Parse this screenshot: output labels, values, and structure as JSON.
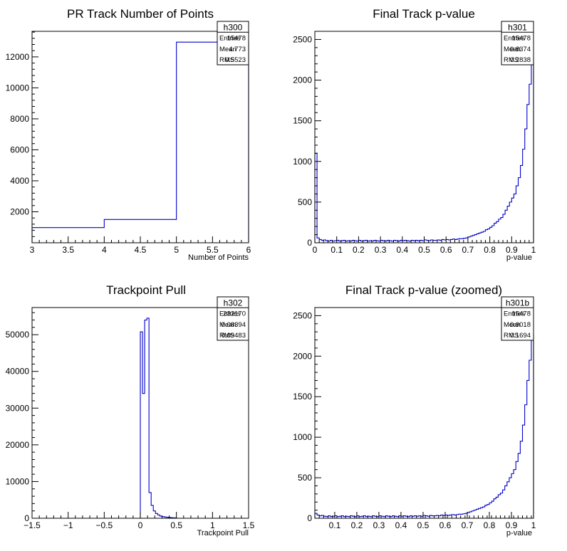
{
  "chart_data": [
    {
      "type": "histogram",
      "title": "PR Track Number of Points",
      "xlabel": "Number of Points",
      "ylabel": "",
      "xlim": [
        3,
        6
      ],
      "ylim": [
        0,
        13650
      ],
      "x_ticks": [
        3,
        3.5,
        4,
        4.5,
        5,
        5.5,
        6
      ],
      "x_tick_labels": [
        "3",
        "3.5",
        "4",
        "4.5",
        "5",
        "5.5",
        "6"
      ],
      "y_ticks": [
        2000,
        4000,
        6000,
        8000,
        10000,
        12000
      ],
      "y_tick_labels": [
        "2000",
        "4000",
        "6000",
        "8000",
        "10000",
        "12000"
      ],
      "bin_edges": [
        3,
        4,
        5,
        6
      ],
      "counts": [
        980,
        1500,
        12950
      ],
      "line_color": "#0000cc",
      "stats": {
        "name": "h300",
        "rows": [
          [
            "Entries",
            "15478"
          ],
          [
            "Mean",
            "4.773"
          ],
          [
            "RMS",
            "0.5523"
          ]
        ]
      }
    },
    {
      "type": "histogram",
      "title": "Final Track p-value",
      "xlabel": "p-value",
      "ylabel": "",
      "xlim": [
        0,
        1
      ],
      "ylim": [
        0,
        2600
      ],
      "x_ticks": [
        0,
        0.1,
        0.2,
        0.3,
        0.4,
        0.5,
        0.6,
        0.7,
        0.8,
        0.9,
        1
      ],
      "x_tick_labels": [
        "0",
        "0.1",
        "0.2",
        "0.3",
        "0.4",
        "0.5",
        "0.6",
        "0.7",
        "0.8",
        "0.9",
        "1"
      ],
      "y_ticks": [
        0,
        500,
        1000,
        1500,
        2000,
        2500
      ],
      "y_tick_labels": [
        "0",
        "500",
        "1000",
        "1500",
        "2000",
        "2500"
      ],
      "bin_edges": [
        0,
        0.01,
        0.02,
        0.03,
        0.04,
        0.05,
        0.06,
        0.07,
        0.08,
        0.09,
        0.1,
        0.11,
        0.12,
        0.13,
        0.14,
        0.15,
        0.16,
        0.17,
        0.18,
        0.19,
        0.2,
        0.21,
        0.22,
        0.23,
        0.24,
        0.25,
        0.26,
        0.27,
        0.28,
        0.29,
        0.3,
        0.31,
        0.32,
        0.33,
        0.34,
        0.35,
        0.36,
        0.37,
        0.38,
        0.39,
        0.4,
        0.41,
        0.42,
        0.43,
        0.44,
        0.45,
        0.46,
        0.47,
        0.48,
        0.49,
        0.5,
        0.51,
        0.52,
        0.53,
        0.54,
        0.55,
        0.56,
        0.57,
        0.58,
        0.59,
        0.6,
        0.61,
        0.62,
        0.63,
        0.64,
        0.65,
        0.66,
        0.67,
        0.68,
        0.69,
        0.7,
        0.71,
        0.72,
        0.73,
        0.74,
        0.75,
        0.76,
        0.77,
        0.78,
        0.79,
        0.8,
        0.81,
        0.82,
        0.83,
        0.84,
        0.85,
        0.86,
        0.87,
        0.88,
        0.89,
        0.9,
        0.91,
        0.92,
        0.93,
        0.94,
        0.95,
        0.96,
        0.97,
        0.98,
        0.99,
        1
      ],
      "counts": [
        1100,
        60,
        40,
        30,
        35,
        25,
        20,
        30,
        20,
        25,
        30,
        20,
        25,
        30,
        20,
        25,
        20,
        30,
        25,
        20,
        30,
        20,
        25,
        30,
        20,
        25,
        20,
        30,
        25,
        20,
        30,
        25,
        20,
        30,
        25,
        20,
        30,
        25,
        20,
        30,
        25,
        30,
        25,
        20,
        30,
        25,
        30,
        25,
        30,
        25,
        35,
        30,
        25,
        35,
        30,
        30,
        35,
        30,
        40,
        35,
        40,
        35,
        40,
        45,
        40,
        45,
        50,
        50,
        55,
        60,
        70,
        80,
        90,
        100,
        110,
        120,
        130,
        140,
        160,
        170,
        190,
        210,
        240,
        260,
        290,
        310,
        350,
        400,
        450,
        500,
        550,
        600,
        700,
        800,
        950,
        1150,
        1400,
        1700,
        1950,
        2260
      ],
      "line_color": "#0000cc",
      "stats": {
        "name": "h301",
        "rows": [
          [
            "Entries",
            "15478"
          ],
          [
            "Mean",
            "0.8374"
          ],
          [
            "RMS",
            "0.2838"
          ]
        ]
      }
    },
    {
      "type": "histogram",
      "title": "Trackpoint Pull",
      "xlabel": "Trackpoint Pull",
      "ylabel": "",
      "xlim": [
        -1.5,
        1.5
      ],
      "ylim": [
        0,
        57400
      ],
      "x_ticks": [
        -1.5,
        -1,
        -0.5,
        0,
        0.5,
        1,
        1.5
      ],
      "x_tick_labels": [
        "−1.5",
        "−1",
        "−0.5",
        "0",
        "0.5",
        "1",
        "1.5"
      ],
      "y_ticks": [
        0,
        10000,
        20000,
        30000,
        40000,
        50000
      ],
      "y_tick_labels": [
        "0",
        "10000",
        "20000",
        "30000",
        "40000",
        "50000"
      ],
      "bin_edges": [
        0,
        0.03,
        0.06,
        0.09,
        0.12,
        0.15,
        0.18,
        0.21,
        0.24,
        0.27,
        0.3,
        0.33,
        0.36,
        0.39,
        0.42,
        0.45,
        0.5
      ],
      "counts": [
        50800,
        34000,
        54000,
        54500,
        7000,
        3500,
        2000,
        1300,
        900,
        600,
        450,
        350,
        250,
        200,
        150,
        100
      ],
      "line_color": "#0000cc",
      "stats": {
        "name": "h302",
        "rows": [
          [
            "Entries",
            "232170"
          ],
          [
            "Mean",
            "0.08394"
          ],
          [
            "RMS",
            "0.09483"
          ]
        ]
      }
    },
    {
      "type": "histogram",
      "title": "Final Track p-value (zoomed)",
      "xlabel": "p-value",
      "ylabel": "",
      "xlim": [
        0.01,
        1
      ],
      "ylim": [
        0,
        2600
      ],
      "x_ticks": [
        0.1,
        0.2,
        0.3,
        0.4,
        0.5,
        0.6,
        0.7,
        0.8,
        0.9,
        1
      ],
      "x_tick_labels": [
        "0.1",
        "0.2",
        "0.3",
        "0.4",
        "0.5",
        "0.6",
        "0.7",
        "0.8",
        "0.9",
        "1"
      ],
      "y_ticks": [
        0,
        500,
        1000,
        1500,
        2000,
        2500
      ],
      "y_tick_labels": [
        "0",
        "500",
        "1000",
        "1500",
        "2000",
        "2500"
      ],
      "bin_edges": [
        0.01,
        0.02,
        0.03,
        0.04,
        0.05,
        0.06,
        0.07,
        0.08,
        0.09,
        0.1,
        0.11,
        0.12,
        0.13,
        0.14,
        0.15,
        0.16,
        0.17,
        0.18,
        0.19,
        0.2,
        0.21,
        0.22,
        0.23,
        0.24,
        0.25,
        0.26,
        0.27,
        0.28,
        0.29,
        0.3,
        0.31,
        0.32,
        0.33,
        0.34,
        0.35,
        0.36,
        0.37,
        0.38,
        0.39,
        0.4,
        0.41,
        0.42,
        0.43,
        0.44,
        0.45,
        0.46,
        0.47,
        0.48,
        0.49,
        0.5,
        0.51,
        0.52,
        0.53,
        0.54,
        0.55,
        0.56,
        0.57,
        0.58,
        0.59,
        0.6,
        0.61,
        0.62,
        0.63,
        0.64,
        0.65,
        0.66,
        0.67,
        0.68,
        0.69,
        0.7,
        0.71,
        0.72,
        0.73,
        0.74,
        0.75,
        0.76,
        0.77,
        0.78,
        0.79,
        0.8,
        0.81,
        0.82,
        0.83,
        0.84,
        0.85,
        0.86,
        0.87,
        0.88,
        0.89,
        0.9,
        0.91,
        0.92,
        0.93,
        0.94,
        0.95,
        0.96,
        0.97,
        0.98,
        0.99,
        1
      ],
      "counts": [
        60,
        40,
        30,
        35,
        25,
        20,
        30,
        20,
        25,
        30,
        20,
        25,
        30,
        20,
        25,
        20,
        30,
        25,
        20,
        30,
        20,
        25,
        30,
        20,
        25,
        20,
        30,
        25,
        20,
        30,
        25,
        20,
        30,
        25,
        20,
        30,
        25,
        20,
        30,
        25,
        30,
        25,
        20,
        30,
        25,
        30,
        25,
        30,
        25,
        35,
        30,
        25,
        35,
        30,
        30,
        35,
        30,
        40,
        35,
        40,
        35,
        40,
        45,
        40,
        45,
        50,
        50,
        55,
        60,
        70,
        80,
        90,
        100,
        110,
        120,
        130,
        140,
        160,
        170,
        190,
        210,
        240,
        260,
        290,
        310,
        350,
        400,
        450,
        500,
        550,
        600,
        700,
        800,
        950,
        1150,
        1400,
        1700,
        1950,
        2260
      ],
      "line_color": "#0000cc",
      "stats": {
        "name": "h301b",
        "rows": [
          [
            "Entries",
            "15478"
          ],
          [
            "Mean",
            "0.9018"
          ],
          [
            "RMS",
            "0.1694"
          ]
        ]
      }
    }
  ]
}
